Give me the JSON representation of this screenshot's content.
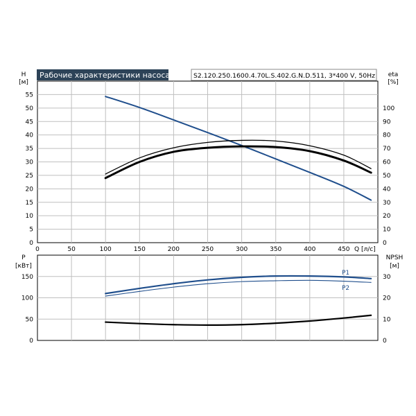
{
  "chart_data": [
    {
      "type": "line",
      "title": "Рабочие характеристики насоса",
      "model": "S2.120.250.1600.4.70L.S.402.G.N.D.511, 3*400 V, 50Hz",
      "xlabel": "Q [л/с]",
      "ylabel_left": "H",
      "ylabel_left_unit": "[м]",
      "ylabel_right": "eta",
      "ylabel_right_unit": "[%]",
      "xlim": [
        0,
        500
      ],
      "ylim_left": [
        0,
        60
      ],
      "ylim_right": [
        0,
        120
      ],
      "x_ticks": [
        0,
        50,
        100,
        150,
        200,
        250,
        300,
        350,
        400,
        450
      ],
      "y_left_ticks": [
        0,
        5,
        10,
        15,
        20,
        25,
        30,
        35,
        40,
        45,
        50,
        55
      ],
      "y_right_ticks": [
        0,
        10,
        20,
        30,
        40,
        50,
        60,
        70,
        80,
        90,
        100
      ],
      "grid": true,
      "series": [
        {
          "axis": "left",
          "color": "#1f4e8c",
          "width": 2,
          "x": [
            100,
            150,
            200,
            250,
            300,
            350,
            400,
            450,
            490
          ],
          "y": [
            54.3,
            50.2,
            45.6,
            40.9,
            36.1,
            31.1,
            26.1,
            20.9,
            15.8
          ]
        },
        {
          "axis": "right",
          "color": "#000000",
          "width": 1.3,
          "x": [
            100,
            150,
            200,
            250,
            300,
            350,
            400,
            450,
            490
          ],
          "y": [
            51,
            63,
            70.5,
            74.5,
            76,
            75.5,
            72,
            65,
            55
          ]
        },
        {
          "axis": "right",
          "color": "#000000",
          "width": 3,
          "x": [
            100,
            150,
            200,
            250,
            300,
            350,
            400,
            450,
            490
          ],
          "y": [
            48,
            60,
            67.5,
            70.5,
            71.5,
            71,
            68,
            61,
            52
          ]
        }
      ]
    },
    {
      "type": "line",
      "ylabel_left": "P",
      "ylabel_left_unit": "[кВт]",
      "ylabel_right": "NPSH",
      "ylabel_right_unit": "[м]",
      "xlim": [
        0,
        500
      ],
      "ylim_left": [
        0,
        200
      ],
      "ylim_right": [
        0,
        40
      ],
      "y_left_ticks": [
        0,
        50,
        100,
        150
      ],
      "y_right_ticks": [
        0,
        10,
        20,
        30
      ],
      "grid": true,
      "series": [
        {
          "name": "P1",
          "axis": "left",
          "color": "#1f4e8c",
          "width": 2.2,
          "x": [
            100,
            150,
            200,
            250,
            300,
            350,
            400,
            450,
            490
          ],
          "y": [
            110,
            122,
            133,
            142,
            148,
            151,
            151,
            149,
            145
          ]
        },
        {
          "name": "P2",
          "axis": "left",
          "color": "#1f4e8c",
          "width": 1.1,
          "x": [
            100,
            150,
            200,
            250,
            300,
            350,
            400,
            450,
            490
          ],
          "y": [
            104,
            115,
            125,
            133,
            138,
            140,
            141,
            139,
            136
          ]
        },
        {
          "axis": "right",
          "color": "#000000",
          "width": 2.2,
          "x": [
            100,
            150,
            200,
            250,
            300,
            350,
            400,
            450,
            490
          ],
          "y": [
            8.6,
            7.9,
            7.4,
            7.2,
            7.4,
            8.1,
            9.1,
            10.5,
            11.8
          ]
        }
      ]
    }
  ]
}
